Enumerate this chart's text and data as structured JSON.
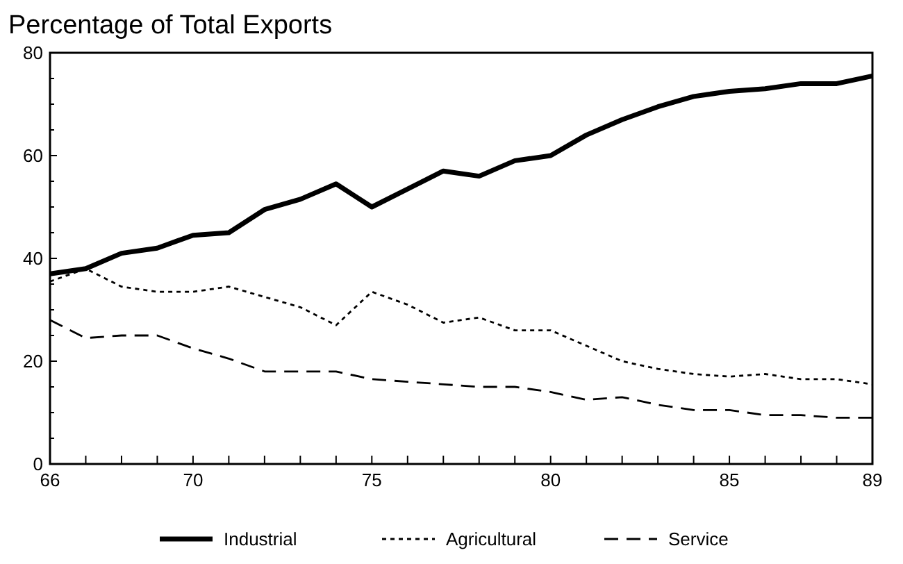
{
  "chart_data": {
    "type": "line",
    "title": "Percentage of Total Exports",
    "x": [
      66,
      67,
      68,
      69,
      70,
      71,
      72,
      73,
      74,
      75,
      76,
      77,
      78,
      79,
      80,
      81,
      82,
      83,
      84,
      85,
      86,
      87,
      88,
      89
    ],
    "series": [
      {
        "name": "Industrial",
        "color": "#000000",
        "line_style": "solid",
        "values": [
          37,
          38,
          41,
          42,
          44.5,
          45,
          49.5,
          51.5,
          54.5,
          50,
          53.5,
          57,
          56,
          59,
          60,
          64,
          67,
          69.5,
          71.5,
          72.5,
          73,
          74,
          74,
          75.5
        ]
      },
      {
        "name": "Agricultural",
        "color": "#000000",
        "line_style": "dotted",
        "values": [
          35.5,
          38,
          34.5,
          33.5,
          33.5,
          34.5,
          32.5,
          30.5,
          27,
          33.5,
          31,
          27.5,
          28.5,
          26,
          26,
          23,
          20,
          18.5,
          17.5,
          17,
          17.5,
          16.5,
          16.5,
          15.5
        ]
      },
      {
        "name": "Service",
        "color": "#000000",
        "line_style": "dashed",
        "values": [
          28,
          24.5,
          25,
          25,
          22.5,
          20.5,
          18,
          18,
          18,
          16.5,
          16,
          15.5,
          15,
          15,
          14,
          12.5,
          13,
          11.5,
          10.5,
          10.5,
          9.5,
          9.5,
          9,
          9
        ]
      }
    ],
    "xlim": [
      66,
      89
    ],
    "xticks": [
      66,
      {
        "value": 67,
        "label": null
      },
      {
        "value": 68,
        "label": null
      },
      {
        "value": 69,
        "label": null
      },
      70,
      {
        "value": 71,
        "label": null
      },
      {
        "value": 72,
        "label": null
      },
      {
        "value": 73,
        "label": null
      },
      {
        "value": 74,
        "label": null
      },
      75,
      {
        "value": 76,
        "label": null
      },
      {
        "value": 77,
        "label": null
      },
      {
        "value": 78,
        "label": null
      },
      {
        "value": 79,
        "label": null
      },
      80,
      {
        "value": 81,
        "label": null
      },
      {
        "value": 82,
        "label": null
      },
      {
        "value": 83,
        "label": null
      },
      {
        "value": 84,
        "label": null
      },
      85,
      {
        "value": 86,
        "label": null
      },
      {
        "value": 87,
        "label": null
      },
      {
        "value": 88,
        "label": null
      },
      89
    ],
    "ylim": [
      0,
      80
    ],
    "yticks": [
      0,
      {
        "value": 5,
        "label": null
      },
      {
        "value": 10,
        "label": null
      },
      {
        "value": 15,
        "label": null
      },
      20,
      {
        "value": 25,
        "label": null
      },
      {
        "value": 30,
        "label": null
      },
      {
        "value": 35,
        "label": null
      },
      40,
      {
        "value": 45,
        "label": null
      },
      {
        "value": 50,
        "label": null
      },
      {
        "value": 55,
        "label": null
      },
      60,
      {
        "value": 65,
        "label": null
      },
      {
        "value": 70,
        "label": null
      },
      {
        "value": 75,
        "label": null
      },
      80
    ],
    "grid": false,
    "legend": "bottom",
    "marker": "none"
  }
}
